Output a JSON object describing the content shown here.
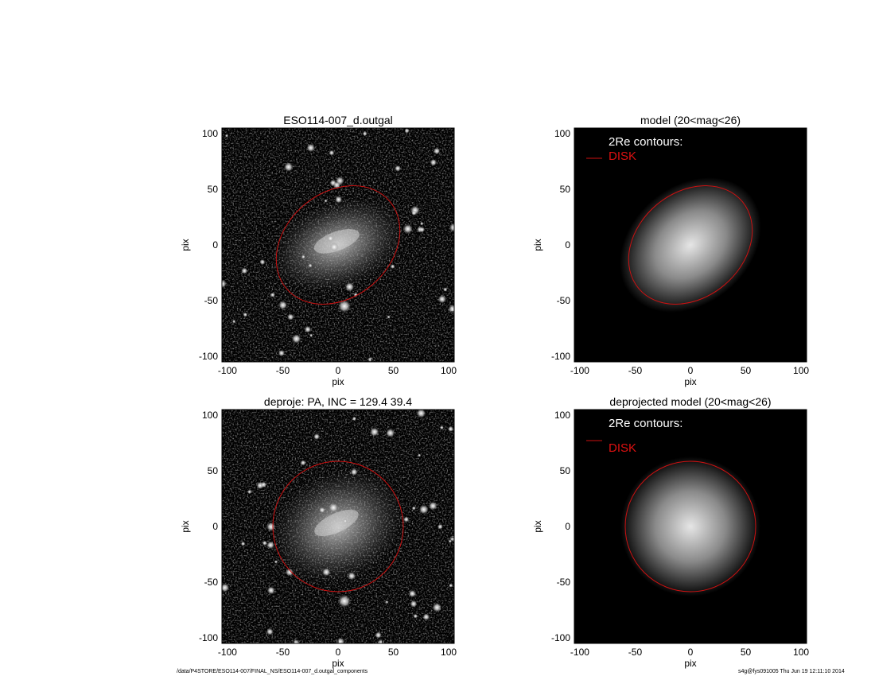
{
  "panels": [
    {
      "title": "ESO114-007_d.outgal",
      "xlabel": "pix",
      "ylabel": "pix",
      "kind": "image",
      "contour": "ellipse"
    },
    {
      "title": "model (20<mag<26)",
      "xlabel": "pix",
      "ylabel": "pix",
      "kind": "model",
      "contour": "ellipse",
      "legend_heading": "2Re contours:",
      "legend_item": "DISK"
    },
    {
      "title": "deproje: PA, INC = 129.4    39.4",
      "xlabel": "pix",
      "ylabel": "pix",
      "kind": "image",
      "contour": "circle"
    },
    {
      "title": "deprojected model (20<mag<26)",
      "xlabel": "pix",
      "ylabel": "pix",
      "kind": "model",
      "contour": "circle",
      "legend_heading": "2Re contours:",
      "legend_item": "DISK"
    }
  ],
  "axes": {
    "xlim": [
      -105,
      105
    ],
    "ylim": [
      -105,
      105
    ],
    "ticks": [
      "-100",
      "-50",
      "0",
      "50",
      "100"
    ]
  },
  "colors": {
    "contour": "#cc1111",
    "legend_text": "#dd1111",
    "background": "#000000"
  },
  "footer": {
    "path": "/data/P4STORE/ESO114-007/FINAL_NS/ESO114-007_d.outgal_components",
    "stamp": "s4g@fys091005  Thu Jun 19 12:11:10 2014"
  }
}
